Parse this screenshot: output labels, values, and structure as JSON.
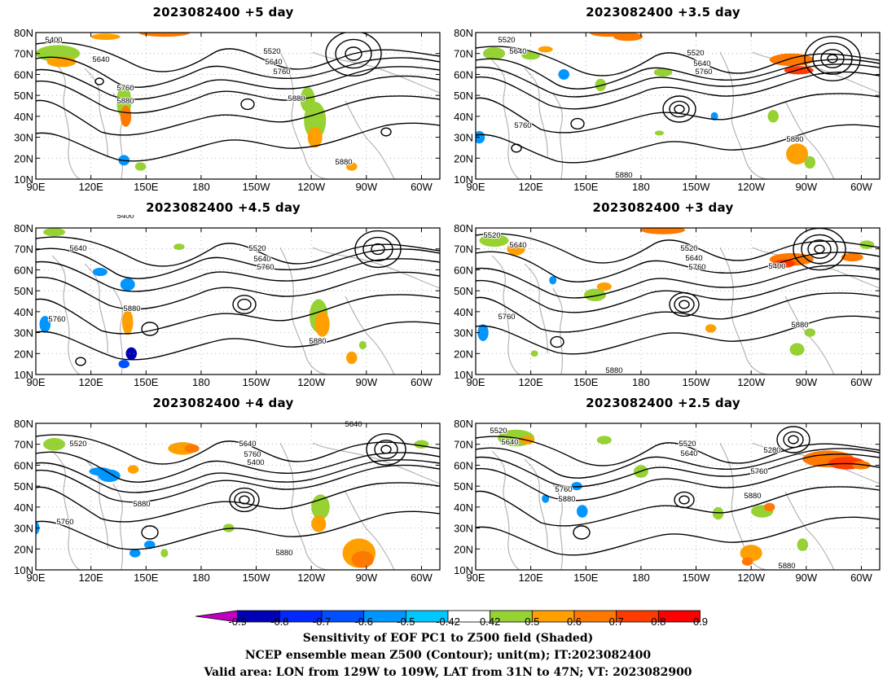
{
  "panels": [
    {
      "title": "2023082400  +5 day"
    },
    {
      "title": "2023082400  +3.5  day"
    },
    {
      "title": "2023082400  +4.5  day"
    },
    {
      "title": "2023082400  +3  day"
    },
    {
      "title": "2023082400  +4  day"
    },
    {
      "title": "2023082400  +2.5  day"
    }
  ],
  "axes": {
    "lat_labels": [
      "80N",
      "70N",
      "60N",
      "50N",
      "40N",
      "30N",
      "20N",
      "10N"
    ],
    "lon_labels": [
      "90E",
      "120E",
      "150E",
      "180",
      "150W",
      "120W",
      "90W",
      "60W"
    ]
  },
  "contour_labels": [
    [
      "5400",
      "5520",
      "5640",
      "5640",
      "5760",
      "5760",
      "5880",
      "5880",
      "5880"
    ],
    [
      "5520",
      "5640",
      "5520",
      "5640",
      "5760",
      "5760",
      "5880",
      "5880"
    ],
    [
      "5400",
      "5640",
      "5520",
      "5640",
      "5760",
      "5760",
      "5880",
      "5880"
    ],
    [
      "5520",
      "5640",
      "5520",
      "5640",
      "5760",
      "5400",
      "5760",
      "5880",
      "5880"
    ],
    [
      "5640",
      "5520",
      "5640",
      "5760",
      "5400",
      "5880",
      "5760",
      "5880"
    ],
    [
      "5520",
      "5640",
      "5520",
      "5640",
      "5280",
      "5760",
      "5760",
      "5880",
      "5880",
      "5880"
    ]
  ],
  "colorbar": {
    "ticks": [
      "-0.9",
      "-0.8",
      "-0.7",
      "-0.6",
      "-0.5",
      "-0.42",
      "0.42",
      "0.5",
      "0.6",
      "0.7",
      "0.8",
      "0.9"
    ],
    "colors": [
      "#c000c0",
      "#0000b4",
      "#0028ff",
      "#0050ff",
      "#0096ff",
      "#00c8ff",
      "#ffffff",
      "#96d232",
      "#ffa000",
      "#ff7800",
      "#ff3c00",
      "#ff0000",
      "#ffa0c8"
    ]
  },
  "caption": {
    "line1": "Sensitivity of EOF PC1 to Z500 field (Shaded)",
    "line2": "NCEP ensemble mean Z500 (Contour); unit(m); IT:2023082400",
    "line3": "Valid area: LON from 129W to 109W, LAT from 31N to 47N; VT: 2023082900"
  }
}
